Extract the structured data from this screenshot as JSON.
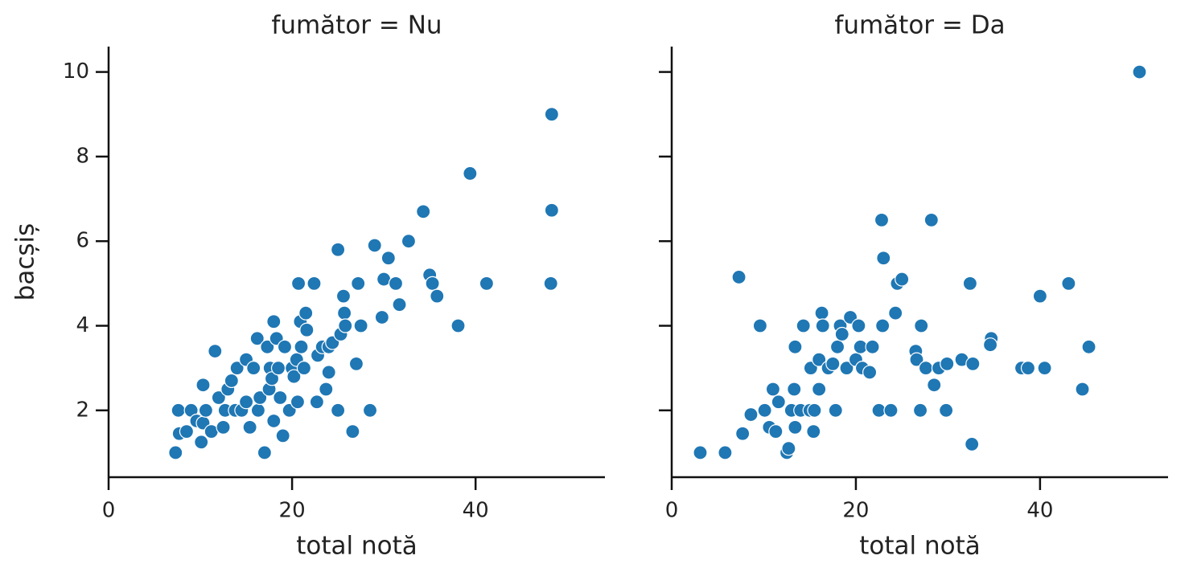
{
  "chart_data": [
    {
      "type": "scatter",
      "title": "fumător = Nu",
      "x_label": "total notă",
      "y_label": "bacșiș",
      "color": "#1f77b4",
      "xlim": [
        0,
        54.1
      ],
      "ylim": [
        0.42,
        10.6
      ],
      "xticks": [
        0,
        20,
        40
      ],
      "yticks": [
        2,
        4,
        6,
        8,
        10
      ],
      "ytick_labels": true,
      "x": [
        7.3,
        7.6,
        7.7,
        8.5,
        9,
        9.6,
        10.1,
        10.3,
        10.3,
        10.6,
        11.2,
        11.6,
        12,
        12.5,
        12.7,
        13,
        13.4,
        13.8,
        14,
        14.5,
        15,
        15,
        15.4,
        15.8,
        16.2,
        16.3,
        16.5,
        17,
        17.3,
        17.5,
        17.6,
        17.8,
        18,
        18,
        18.3,
        18.5,
        18.7,
        19,
        19.2,
        19.7,
        20,
        20.2,
        20.5,
        20.6,
        20.7,
        20.9,
        21,
        21.3,
        21.5,
        21.6,
        22.4,
        22.7,
        22.8,
        23.3,
        23.7,
        24,
        24,
        24.4,
        25,
        25,
        25.3,
        25.6,
        25.7,
        25.8,
        26.6,
        27,
        27.2,
        27.5,
        28.5,
        29,
        29.8,
        30,
        30.5,
        31.3,
        31.7,
        32.7,
        34.3,
        35,
        35.3,
        35.8,
        38.1,
        39.4,
        41.2,
        48.2,
        48.3,
        48.3
      ],
      "values": [
        1,
        2,
        1.45,
        1.5,
        2,
        1.75,
        1.25,
        2.6,
        1.7,
        2,
        1.5,
        3.4,
        2.3,
        1.6,
        2,
        2.5,
        2.7,
        2,
        3,
        2,
        2.2,
        3.2,
        1.6,
        3,
        3.7,
        2,
        2.3,
        1,
        3.5,
        2.5,
        3,
        2.75,
        4.1,
        1.75,
        3.7,
        3,
        2.3,
        1.4,
        3.5,
        2,
        3,
        2.8,
        3.2,
        2.2,
        5,
        4.1,
        3.5,
        3,
        4.3,
        3.9,
        5,
        2.2,
        3.3,
        3.5,
        2.5,
        2.9,
        3.5,
        3.6,
        2,
        5.8,
        3.8,
        4.7,
        4.3,
        4,
        1.5,
        3.1,
        5,
        4,
        2,
        5.9,
        4.2,
        5.1,
        5.6,
        5,
        4.5,
        6,
        6.7,
        5.2,
        5,
        4.7,
        4,
        7.6,
        5,
        5,
        6.73,
        9
      ]
    },
    {
      "type": "scatter",
      "title": "fumător = Da",
      "x_label": "total notă",
      "color": "#1f77b4",
      "xlim": [
        0,
        53.9
      ],
      "ylim": [
        0.42,
        10.6
      ],
      "xticks": [
        0,
        20,
        40
      ],
      "yticks": [
        2,
        4,
        6,
        8,
        10
      ],
      "ytick_labels": false,
      "x": [
        3.1,
        5.8,
        7.3,
        7.7,
        8.6,
        9.6,
        10.1,
        10.6,
        11,
        11.3,
        11.6,
        12.5,
        12.7,
        13,
        13.3,
        13.4,
        13.4,
        14,
        14.3,
        15,
        15.1,
        15.4,
        15.5,
        16,
        16,
        16.3,
        16.4,
        17,
        17.5,
        17.8,
        18,
        18.3,
        18.5,
        19,
        19.4,
        20,
        20.3,
        20.5,
        20.7,
        21.5,
        21.8,
        22.5,
        22.8,
        22.9,
        23,
        23.8,
        24.3,
        24.5,
        25,
        26.5,
        26.6,
        27,
        27.1,
        27.6,
        28.2,
        28.5,
        29,
        29.8,
        29.9,
        31.5,
        32.4,
        32.6,
        32.7,
        34.7,
        34.6,
        38,
        38.7,
        40,
        40.5,
        43.1,
        44.6,
        45.3,
        50.8
      ],
      "values": [
        1,
        1,
        5.15,
        1.45,
        1.9,
        4,
        2,
        1.6,
        2.5,
        1.5,
        2.2,
        1,
        1.1,
        2,
        2.5,
        3.5,
        1.6,
        2,
        4,
        2,
        3,
        1.5,
        2,
        3.2,
        2.5,
        4.3,
        4,
        3,
        3.1,
        2,
        3.5,
        4,
        3.8,
        3,
        4.2,
        3.2,
        4,
        3.5,
        3,
        2.9,
        3.5,
        2,
        6.5,
        4,
        5.6,
        2,
        4.3,
        5,
        5.1,
        3.4,
        3.2,
        2,
        4,
        3,
        6.5,
        2.6,
        3,
        2,
        3.1,
        3.2,
        5,
        1.2,
        3.1,
        3.7,
        3.55,
        3,
        3,
        4.7,
        3,
        5,
        2.5,
        3.5,
        10
      ]
    }
  ]
}
